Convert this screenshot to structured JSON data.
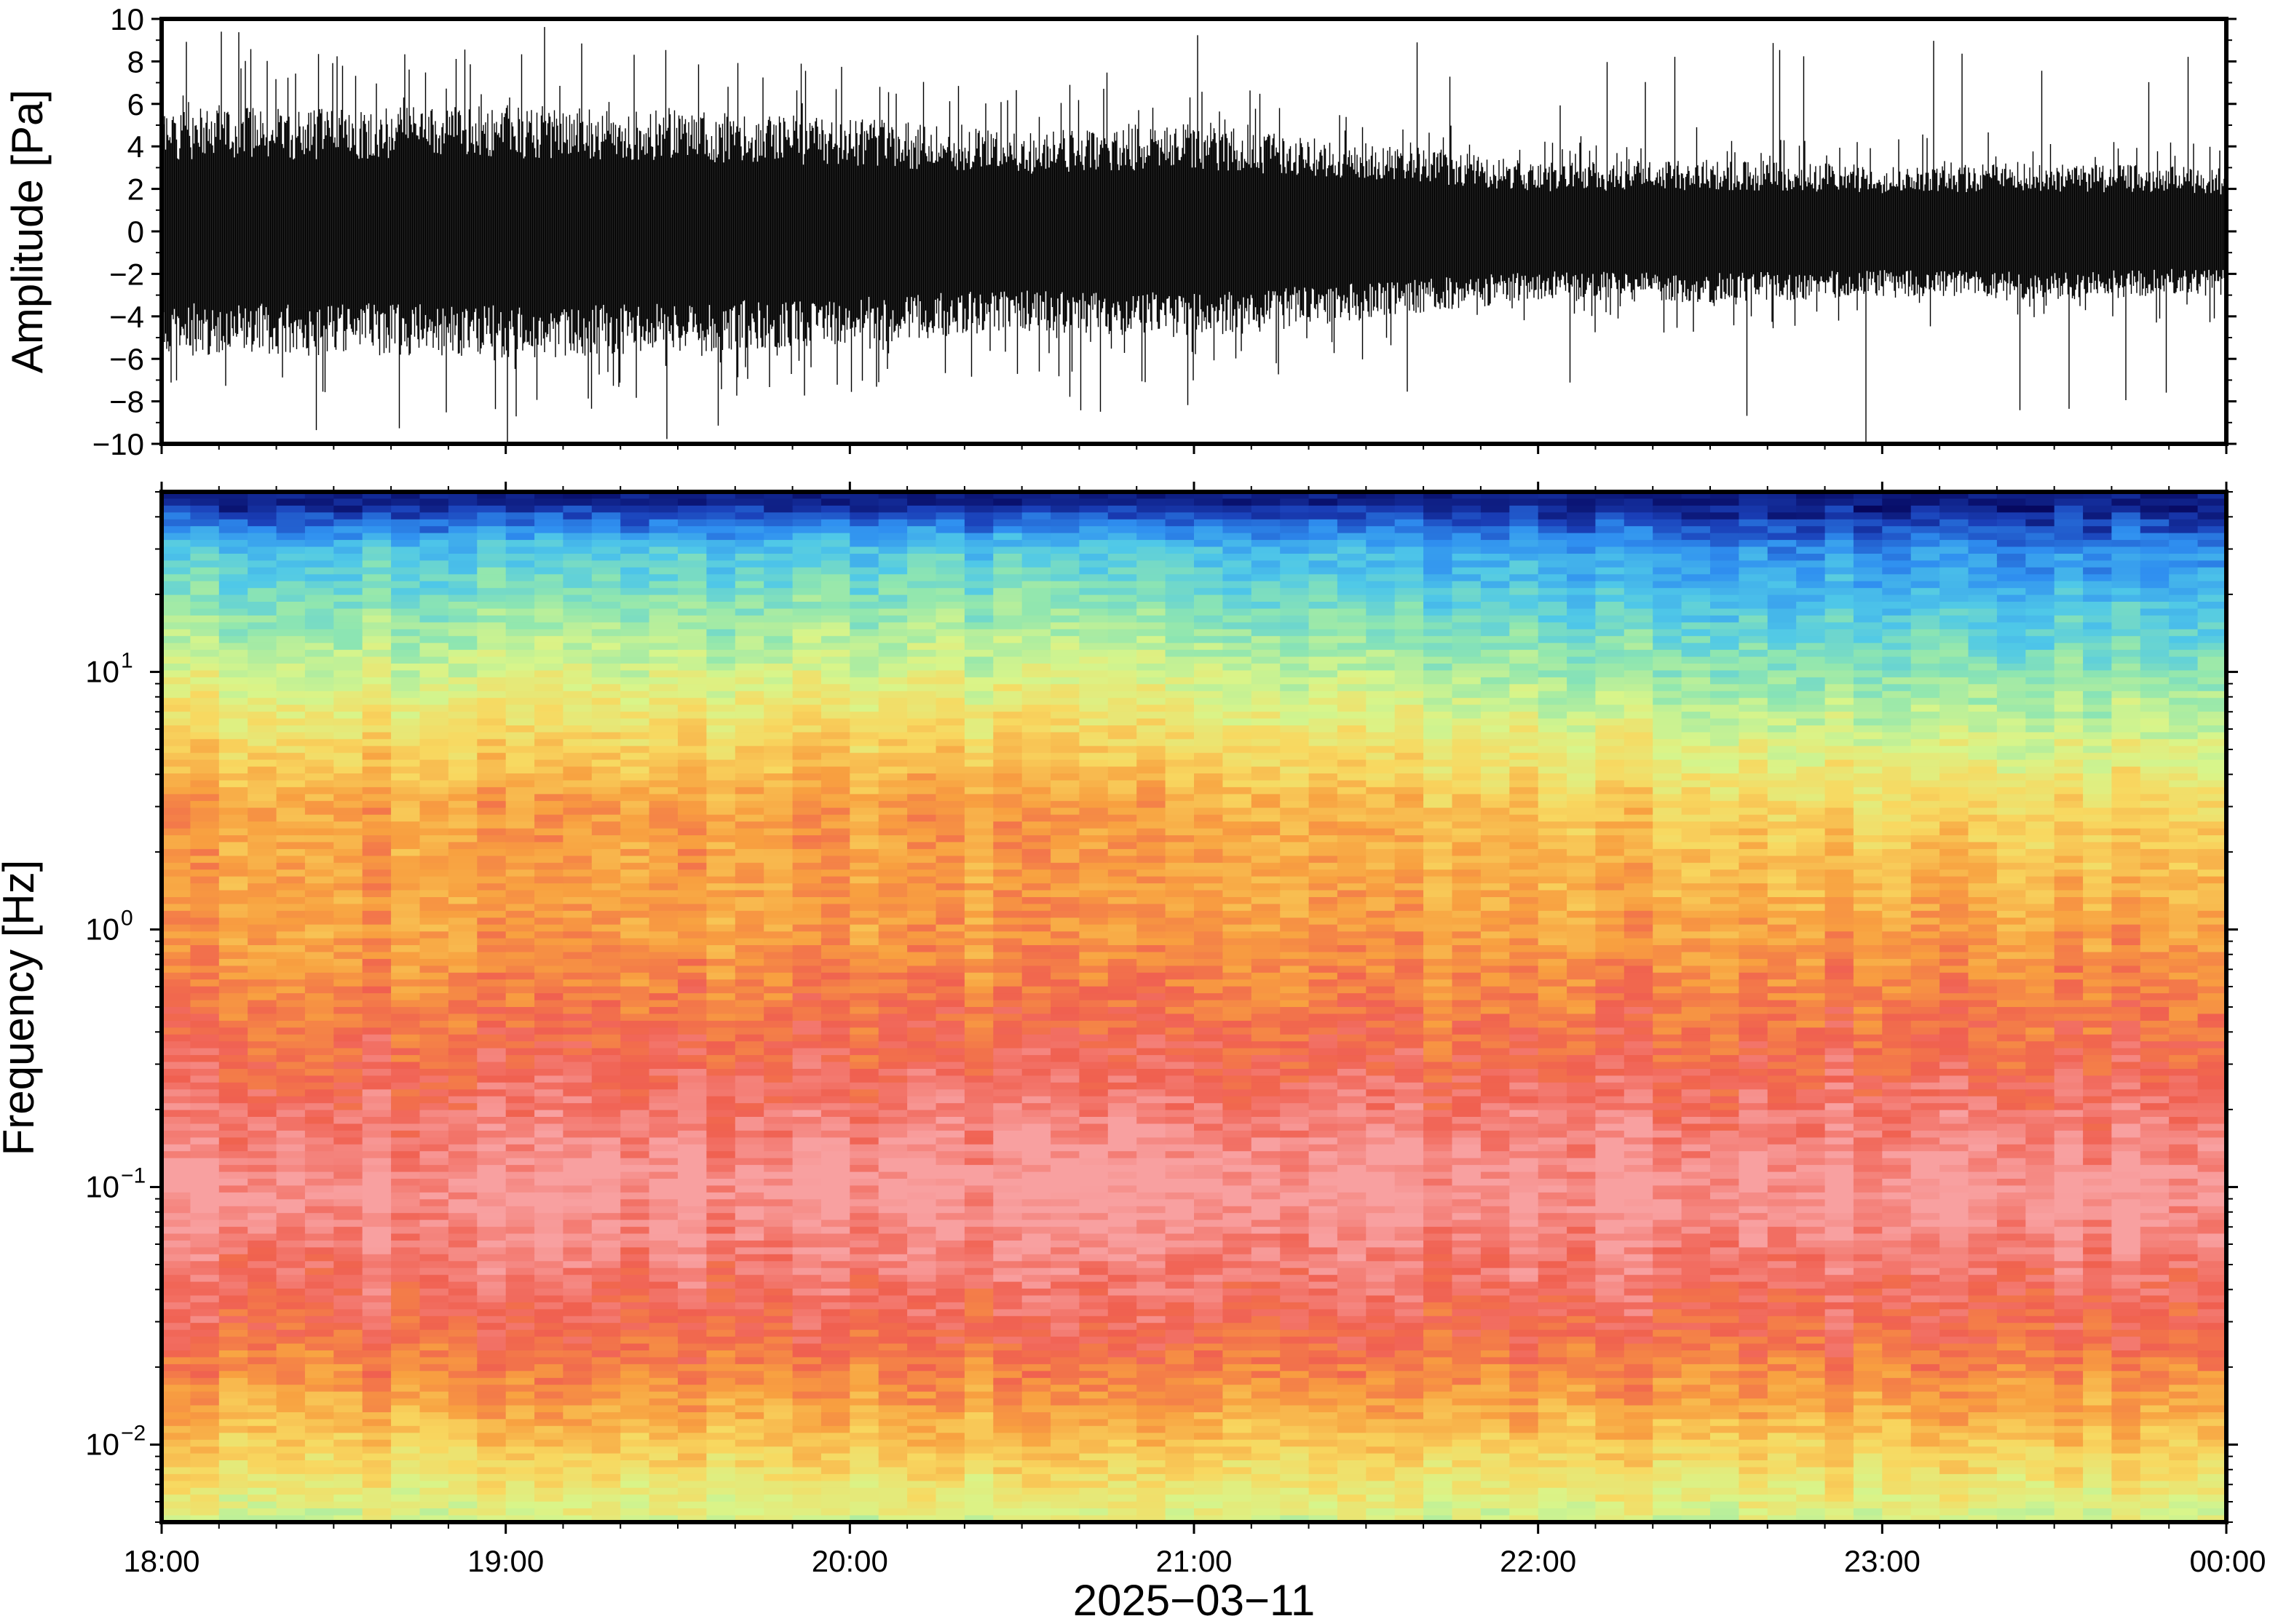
{
  "chart_data": [
    {
      "type": "line",
      "panel": "waveform",
      "ylabel": "Amplitude [Pa]",
      "ylim": [
        -10,
        10
      ],
      "yticks": [
        10,
        8,
        6,
        4,
        2,
        0,
        -2,
        -4,
        -6,
        -8,
        -10
      ],
      "ytick_labels": [
        "10",
        "8",
        "6",
        "4",
        "2",
        "0",
        "−2",
        "−4",
        "−6",
        "−8",
        "−10"
      ],
      "xlim": [
        "2025-03-11 18:00",
        "2025-03-12 00:00"
      ],
      "series": [
        {
          "color": "#000000",
          "envelope_times": [
            "18:00",
            "18:30",
            "19:00",
            "19:30",
            "20:00",
            "20:30",
            "21:00",
            "21:30",
            "22:00",
            "22:30",
            "23:00",
            "23:30",
            "00:00"
          ],
          "envelope_typical_abs": [
            4.5,
            4.5,
            4.6,
            4.4,
            4.1,
            3.6,
            3.9,
            3.2,
            2.5,
            2.6,
            2.4,
            2.5,
            2.3
          ],
          "envelope_peak_abs": [
            10,
            9.5,
            10,
            10,
            8.5,
            8.0,
            9.8,
            10,
            7.0,
            9.5,
            10,
            8.5,
            9.0
          ]
        }
      ]
    },
    {
      "type": "heatmap",
      "panel": "spectrogram",
      "ylabel": "Frequency [Hz]",
      "yscale": "log",
      "ylim": [
        0.005,
        50
      ],
      "yticks": [
        10,
        1,
        0.1,
        0.01
      ],
      "ytick_labels": [
        {
          "base": "10",
          "exp": "1"
        },
        {
          "base": "10",
          "exp": "0"
        },
        {
          "base": "10",
          "exp": "−1"
        },
        {
          "base": "10",
          "exp": "−2"
        }
      ],
      "xlabel": "2025−03−11",
      "xlim": [
        "2025-03-11 18:00",
        "2025-03-12 00:00"
      ],
      "xtick_labels": [
        "18:00",
        "19:00",
        "20:00",
        "21:00",
        "22:00",
        "23:00",
        "00:00"
      ],
      "colormap_stops": [
        "#05055a",
        "#1a3fb8",
        "#2f8ff0",
        "#4fc8e8",
        "#8fe6b0",
        "#d8f58a",
        "#f8d860",
        "#f8a040",
        "#f06050",
        "#f8a0a0"
      ],
      "description_levels": {
        "frequency_bands_hz": [
          50,
          30,
          10,
          3,
          1,
          0.3,
          0.1,
          0.03,
          0.015,
          0.005
        ],
        "early_period_color_index": [
          0,
          3,
          5,
          7,
          7,
          8,
          9,
          8,
          7,
          5
        ],
        "late_period_color_index": [
          0,
          2,
          4,
          6,
          7,
          8,
          9,
          8,
          7,
          5
        ]
      }
    }
  ]
}
